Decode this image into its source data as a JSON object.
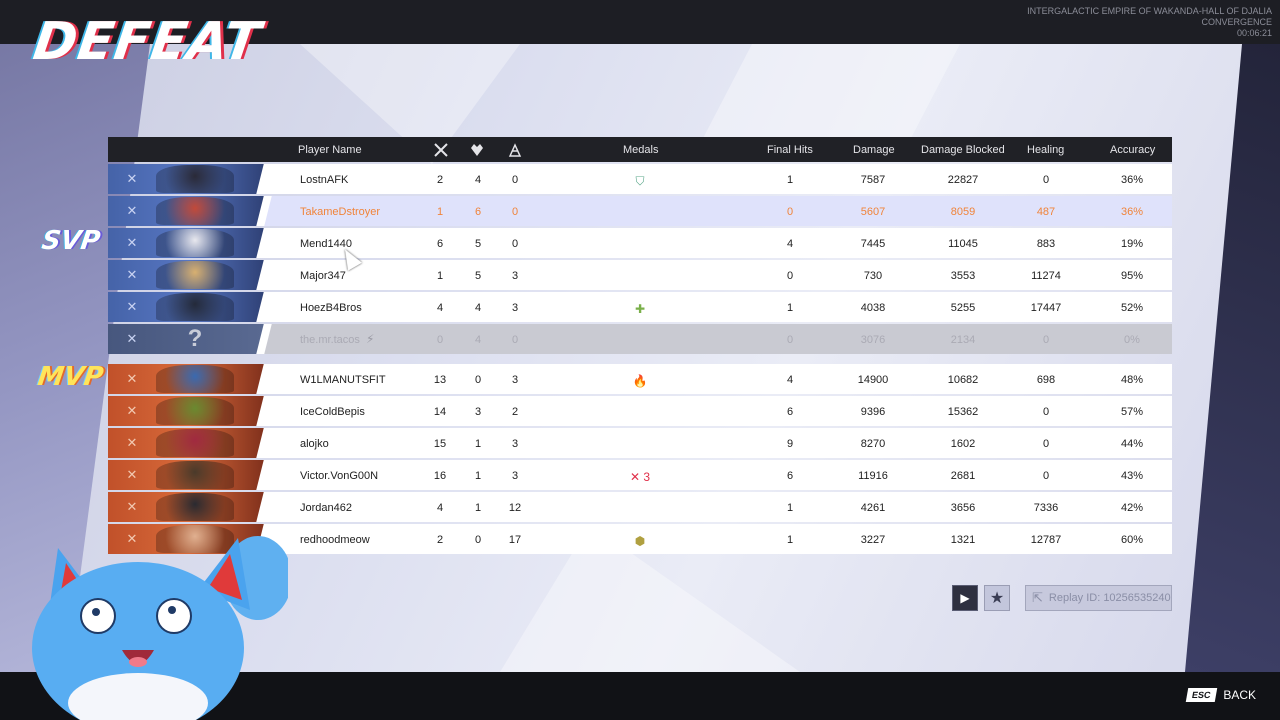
{
  "title": "DEFEAT",
  "match_info": {
    "map_line1": "INTERGALACTIC EMPIRE OF WAKANDA-HALL OF DJALIA",
    "mode": "CONVERGENCE",
    "time": "00:06:21"
  },
  "tags": {
    "svp": "SVP",
    "mvp": "MVP"
  },
  "columns": {
    "player_name": "Player Name",
    "medals": "Medals",
    "final_hits": "Final Hits",
    "damage": "Damage",
    "damage_blocked": "Damage Blocked",
    "healing": "Healing",
    "accuracy": "Accuracy"
  },
  "team_blue": [
    {
      "name": "LostnAFK",
      "k": "2",
      "d": "4",
      "a": "0",
      "medal": "shield",
      "fh": "1",
      "dmg": "7587",
      "blk": "22827",
      "heal": "0",
      "acc": "36%"
    },
    {
      "name": "TakameDstroyer",
      "k": "1",
      "d": "6",
      "a": "0",
      "medal": "",
      "fh": "0",
      "dmg": "5607",
      "blk": "8059",
      "heal": "487",
      "acc": "36%"
    },
    {
      "name": "Mend1440",
      "k": "6",
      "d": "5",
      "a": "0",
      "medal": "",
      "fh": "4",
      "dmg": "7445",
      "blk": "11045",
      "heal": "883",
      "acc": "19%"
    },
    {
      "name": "Major347",
      "k": "1",
      "d": "5",
      "a": "3",
      "medal": "",
      "fh": "0",
      "dmg": "730",
      "blk": "3553",
      "heal": "11274",
      "acc": "95%"
    },
    {
      "name": "HoezB4Bros",
      "k": "4",
      "d": "4",
      "a": "3",
      "medal": "plus",
      "fh": "1",
      "dmg": "4038",
      "blk": "5255",
      "heal": "17447",
      "acc": "52%"
    },
    {
      "name": "the.mr.tacos",
      "k": "0",
      "d": "4",
      "a": "0",
      "medal": "",
      "fh": "0",
      "dmg": "3076",
      "blk": "2134",
      "heal": "0",
      "acc": "0%"
    }
  ],
  "team_red": [
    {
      "name": "W1LMANUTSFIT",
      "k": "13",
      "d": "0",
      "a": "3",
      "medal": "flame",
      "fh": "4",
      "dmg": "14900",
      "blk": "10682",
      "heal": "698",
      "acc": "48%"
    },
    {
      "name": "IceColdBepis",
      "k": "14",
      "d": "3",
      "a": "2",
      "medal": "",
      "fh": "6",
      "dmg": "9396",
      "blk": "15362",
      "heal": "0",
      "acc": "57%"
    },
    {
      "name": "alojko",
      "k": "15",
      "d": "1",
      "a": "3",
      "medal": "",
      "fh": "9",
      "dmg": "8270",
      "blk": "1602",
      "heal": "0",
      "acc": "44%"
    },
    {
      "name": "Victor.VonG00N",
      "k": "16",
      "d": "1",
      "a": "3",
      "medal": "swords-3",
      "fh": "6",
      "dmg": "11916",
      "blk": "2681",
      "heal": "0",
      "acc": "43%"
    },
    {
      "name": "Jordan462",
      "k": "4",
      "d": "1",
      "a": "12",
      "medal": "",
      "fh": "1",
      "dmg": "4261",
      "blk": "3656",
      "heal": "7336",
      "acc": "42%"
    },
    {
      "name": "redhoodmeow",
      "k": "2",
      "d": "0",
      "a": "17",
      "medal": "hex",
      "fh": "1",
      "dmg": "3227",
      "blk": "1321",
      "heal": "12787",
      "acc": "60%"
    }
  ],
  "replay": {
    "label": "Replay ID: 10256535240"
  },
  "back": {
    "key": "ESC",
    "label": "BACK"
  },
  "colors": {
    "blue_team": "#4563a8",
    "red_team": "#c1512a",
    "highlight": "#f0843a"
  }
}
